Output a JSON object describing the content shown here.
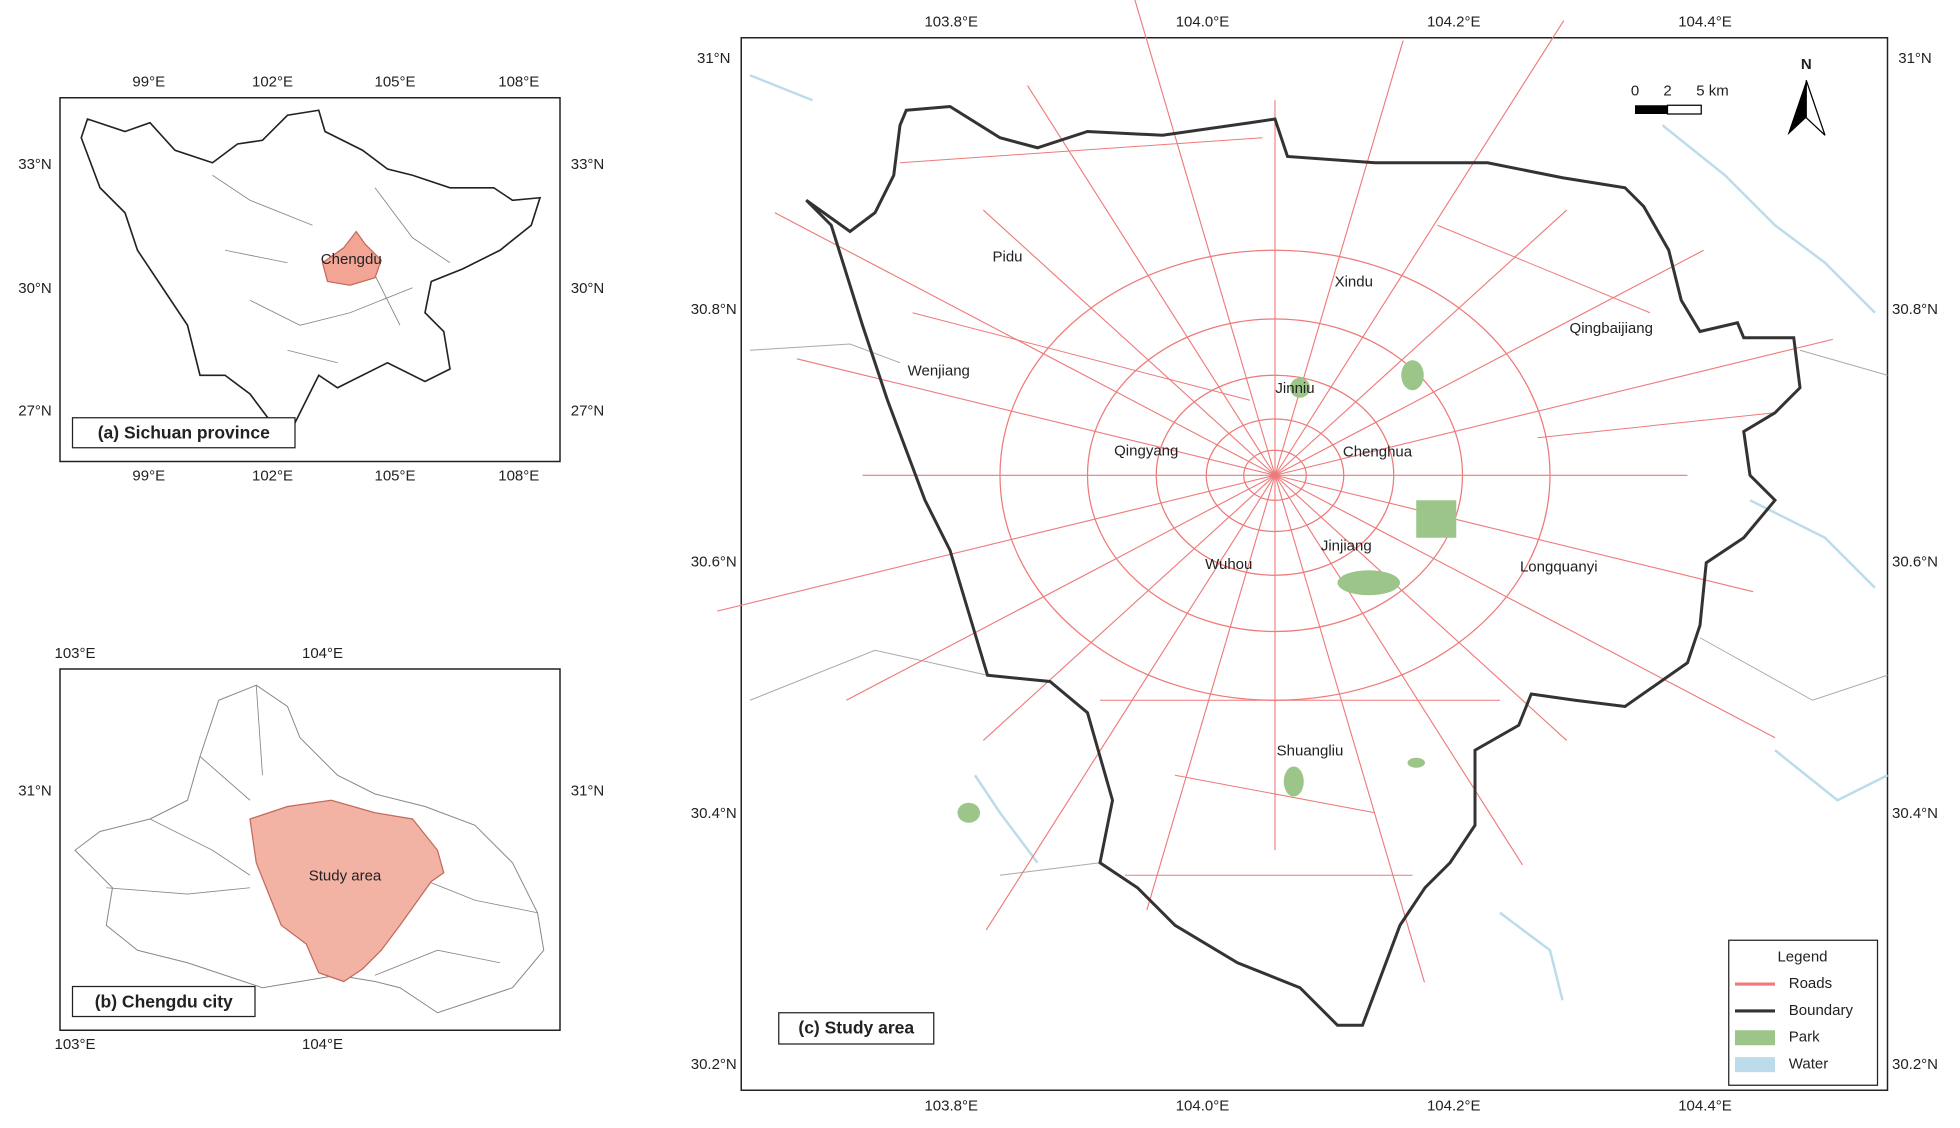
{
  "panel_a": {
    "title": "(a) Sichuan province",
    "label": "Chengdu",
    "x_ticks": [
      "99°E",
      "102°E",
      "105°E",
      "108°E"
    ],
    "y_ticks": [
      "33°N",
      "30°N",
      "27°N"
    ]
  },
  "panel_b": {
    "title": "(b) Chengdu city",
    "label": "Study area",
    "x_ticks": [
      "103°E",
      "104°E"
    ],
    "y_ticks": [
      "31°N"
    ]
  },
  "panel_c": {
    "title": "(c) Study area",
    "x_ticks": [
      "103.8°E",
      "104.0°E",
      "104.2°E",
      "104.4°E"
    ],
    "y_ticks": [
      "31°N",
      "30.8°N",
      "30.6°N",
      "30.4°N",
      "30.2°N"
    ],
    "districts": [
      "Pidu",
      "Xindu",
      "Qingbaijiang",
      "Wenjiang",
      "Jinniu",
      "Qingyang",
      "Chenghua",
      "Jinjiang",
      "Wuhou",
      "Longquanyi",
      "Shuangliu"
    ],
    "north": "N",
    "scale_bar": [
      "0",
      "2",
      "5 km"
    ],
    "legend": {
      "title": "Legend",
      "items": [
        "Roads",
        "Boundary",
        "Park",
        "Water"
      ]
    }
  }
}
